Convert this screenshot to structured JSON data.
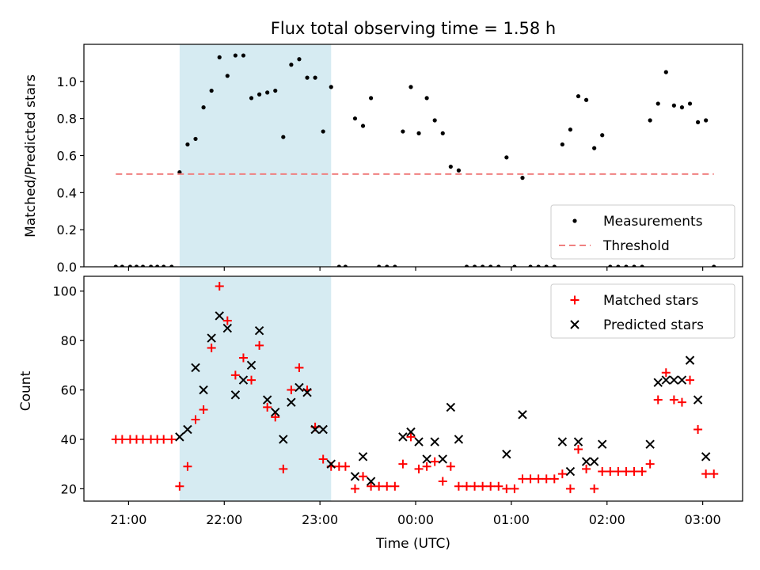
{
  "chart_data": [
    {
      "type": "scatter",
      "title": "Flux total observing time = 1.58 h",
      "xlabel": "",
      "ylabel": "Matched/Predicted stars",
      "xlim": [
        "20:32",
        "03:25"
      ],
      "ylim": [
        0,
        1.2
      ],
      "xticks": [
        "21:00",
        "22:00",
        "23:00",
        "00:00",
        "01:00",
        "02:00",
        "03:00"
      ],
      "yticks": [
        "0.0",
        "0.2",
        "0.4",
        "0.6",
        "0.8",
        "1.0"
      ],
      "shaded_interval": [
        "21:32",
        "23:07"
      ],
      "legend_position": "lower-right",
      "series": [
        {
          "name": "Measurements",
          "style": "dot",
          "color": "#000000",
          "points": [
            [
              "20:52",
              0
            ],
            [
              "20:56",
              0
            ],
            [
              "21:01",
              0
            ],
            [
              "21:05",
              0
            ],
            [
              "21:09",
              0
            ],
            [
              "21:14",
              0
            ],
            [
              "21:18",
              0
            ],
            [
              "21:22",
              0
            ],
            [
              "21:27",
              0
            ],
            [
              "21:32",
              0.51
            ],
            [
              "21:37",
              0.66
            ],
            [
              "21:42",
              0.69
            ],
            [
              "21:47",
              0.86
            ],
            [
              "21:52",
              0.95
            ],
            [
              "21:57",
              1.13
            ],
            [
              "22:02",
              1.03
            ],
            [
              "22:07",
              1.14
            ],
            [
              "22:12",
              1.14
            ],
            [
              "22:17",
              0.91
            ],
            [
              "22:22",
              0.93
            ],
            [
              "22:27",
              0.94
            ],
            [
              "22:32",
              0.95
            ],
            [
              "22:37",
              0.7
            ],
            [
              "22:42",
              1.09
            ],
            [
              "22:47",
              1.12
            ],
            [
              "22:52",
              1.02
            ],
            [
              "22:57",
              1.02
            ],
            [
              "23:02",
              0.73
            ],
            [
              "23:07",
              0.97
            ],
            [
              "23:12",
              0
            ],
            [
              "23:16",
              0
            ],
            [
              "23:22",
              0.8
            ],
            [
              "23:27",
              0.76
            ],
            [
              "23:32",
              0.91
            ],
            [
              "23:37",
              0
            ],
            [
              "23:42",
              0
            ],
            [
              "23:47",
              0
            ],
            [
              "23:52",
              0.73
            ],
            [
              "23:57",
              0.97
            ],
            [
              "00:02",
              0.72
            ],
            [
              "00:07",
              0.91
            ],
            [
              "00:12",
              0.79
            ],
            [
              "00:17",
              0.72
            ],
            [
              "00:22",
              0.54
            ],
            [
              "00:27",
              0.52
            ],
            [
              "00:32",
              0
            ],
            [
              "00:37",
              0
            ],
            [
              "00:42",
              0
            ],
            [
              "00:47",
              0
            ],
            [
              "00:52",
              0
            ],
            [
              "00:57",
              0.59
            ],
            [
              "01:02",
              0
            ],
            [
              "01:07",
              0.48
            ],
            [
              "01:12",
              0
            ],
            [
              "01:17",
              0
            ],
            [
              "01:22",
              0
            ],
            [
              "01:27",
              0
            ],
            [
              "01:32",
              0.66
            ],
            [
              "01:37",
              0.74
            ],
            [
              "01:42",
              0.92
            ],
            [
              "01:47",
              0.9
            ],
            [
              "01:52",
              0.64
            ],
            [
              "01:57",
              0.71
            ],
            [
              "02:02",
              0
            ],
            [
              "02:07",
              0
            ],
            [
              "02:12",
              0
            ],
            [
              "02:17",
              0
            ],
            [
              "02:22",
              0
            ],
            [
              "02:27",
              0.79
            ],
            [
              "02:32",
              0.88
            ],
            [
              "02:37",
              1.05
            ],
            [
              "02:42",
              0.87
            ],
            [
              "02:47",
              0.86
            ],
            [
              "02:52",
              0.88
            ],
            [
              "02:57",
              0.78
            ],
            [
              "03:02",
              0.79
            ],
            [
              "03:07",
              0
            ]
          ]
        },
        {
          "name": "Threshold",
          "style": "dashed-line",
          "color": "#f08080",
          "points": [
            [
              "20:52",
              0.5
            ],
            [
              "03:07",
              0.5
            ]
          ]
        }
      ]
    },
    {
      "type": "scatter",
      "title": "",
      "xlabel": "Time (UTC)",
      "ylabel": "Count",
      "xlim": [
        "20:32",
        "03:25"
      ],
      "ylim": [
        15,
        106
      ],
      "xticks": [
        "21:00",
        "22:00",
        "23:00",
        "00:00",
        "01:00",
        "02:00",
        "03:00"
      ],
      "yticks": [
        "20",
        "40",
        "60",
        "80",
        "100"
      ],
      "shaded_interval": [
        "21:32",
        "23:07"
      ],
      "legend_position": "upper-right",
      "series": [
        {
          "name": "Matched stars",
          "style": "plus",
          "color": "#ff0000",
          "points": [
            [
              "20:52",
              40
            ],
            [
              "20:56",
              40
            ],
            [
              "21:01",
              40
            ],
            [
              "21:05",
              40
            ],
            [
              "21:09",
              40
            ],
            [
              "21:14",
              40
            ],
            [
              "21:18",
              40
            ],
            [
              "21:22",
              40
            ],
            [
              "21:27",
              40
            ],
            [
              "21:32",
              21
            ],
            [
              "21:37",
              29
            ],
            [
              "21:42",
              48
            ],
            [
              "21:47",
              52
            ],
            [
              "21:52",
              77
            ],
            [
              "21:57",
              102
            ],
            [
              "22:02",
              88
            ],
            [
              "22:07",
              66
            ],
            [
              "22:12",
              73
            ],
            [
              "22:17",
              64
            ],
            [
              "22:22",
              78
            ],
            [
              "22:27",
              53
            ],
            [
              "22:32",
              49
            ],
            [
              "22:37",
              28
            ],
            [
              "22:42",
              60
            ],
            [
              "22:47",
              69
            ],
            [
              "22:52",
              60
            ],
            [
              "22:57",
              45
            ],
            [
              "23:02",
              32
            ],
            [
              "23:07",
              29
            ],
            [
              "23:12",
              29
            ],
            [
              "23:16",
              29
            ],
            [
              "23:22",
              20
            ],
            [
              "23:27",
              25
            ],
            [
              "23:32",
              21
            ],
            [
              "23:37",
              21
            ],
            [
              "23:42",
              21
            ],
            [
              "23:47",
              21
            ],
            [
              "23:52",
              30
            ],
            [
              "23:57",
              41
            ],
            [
              "00:02",
              28
            ],
            [
              "00:07",
              29
            ],
            [
              "00:12",
              31
            ],
            [
              "00:17",
              23
            ],
            [
              "00:22",
              29
            ],
            [
              "00:27",
              21
            ],
            [
              "00:32",
              21
            ],
            [
              "00:37",
              21
            ],
            [
              "00:42",
              21
            ],
            [
              "00:47",
              21
            ],
            [
              "00:52",
              21
            ],
            [
              "00:57",
              20
            ],
            [
              "01:02",
              20
            ],
            [
              "01:07",
              24
            ],
            [
              "01:12",
              24
            ],
            [
              "01:17",
              24
            ],
            [
              "01:22",
              24
            ],
            [
              "01:27",
              24
            ],
            [
              "01:32",
              26
            ],
            [
              "01:37",
              20
            ],
            [
              "01:42",
              36
            ],
            [
              "01:47",
              28
            ],
            [
              "01:52",
              20
            ],
            [
              "01:57",
              27
            ],
            [
              "02:02",
              27
            ],
            [
              "02:07",
              27
            ],
            [
              "02:12",
              27
            ],
            [
              "02:17",
              27
            ],
            [
              "02:22",
              27
            ],
            [
              "02:27",
              30
            ],
            [
              "02:32",
              56
            ],
            [
              "02:37",
              67
            ],
            [
              "02:42",
              56
            ],
            [
              "02:47",
              55
            ],
            [
              "02:52",
              64
            ],
            [
              "02:57",
              44
            ],
            [
              "03:02",
              26
            ],
            [
              "03:07",
              26
            ]
          ]
        },
        {
          "name": "Predicted stars",
          "style": "x",
          "color": "#000000",
          "points": [
            [
              "21:32",
              41
            ],
            [
              "21:37",
              44
            ],
            [
              "21:42",
              69
            ],
            [
              "21:47",
              60
            ],
            [
              "21:52",
              81
            ],
            [
              "21:57",
              90
            ],
            [
              "22:02",
              85
            ],
            [
              "22:07",
              58
            ],
            [
              "22:12",
              64
            ],
            [
              "22:17",
              70
            ],
            [
              "22:22",
              84
            ],
            [
              "22:27",
              56
            ],
            [
              "22:32",
              51
            ],
            [
              "22:37",
              40
            ],
            [
              "22:42",
              55
            ],
            [
              "22:47",
              61
            ],
            [
              "22:52",
              59
            ],
            [
              "22:57",
              44
            ],
            [
              "23:02",
              44
            ],
            [
              "23:07",
              30
            ],
            [
              "23:22",
              25
            ],
            [
              "23:27",
              33
            ],
            [
              "23:32",
              23
            ],
            [
              "23:52",
              41
            ],
            [
              "23:57",
              43
            ],
            [
              "00:02",
              39
            ],
            [
              "00:07",
              32
            ],
            [
              "00:12",
              39
            ],
            [
              "00:17",
              32
            ],
            [
              "00:22",
              53
            ],
            [
              "00:27",
              40
            ],
            [
              "00:57",
              34
            ],
            [
              "01:07",
              50
            ],
            [
              "01:32",
              39
            ],
            [
              "01:37",
              27
            ],
            [
              "01:42",
              39
            ],
            [
              "01:47",
              31
            ],
            [
              "01:52",
              31
            ],
            [
              "01:57",
              38
            ],
            [
              "02:27",
              38
            ],
            [
              "02:32",
              63
            ],
            [
              "02:37",
              64
            ],
            [
              "02:42",
              64
            ],
            [
              "02:47",
              64
            ],
            [
              "02:52",
              72
            ],
            [
              "02:57",
              56
            ],
            [
              "03:02",
              33
            ]
          ]
        }
      ]
    }
  ]
}
